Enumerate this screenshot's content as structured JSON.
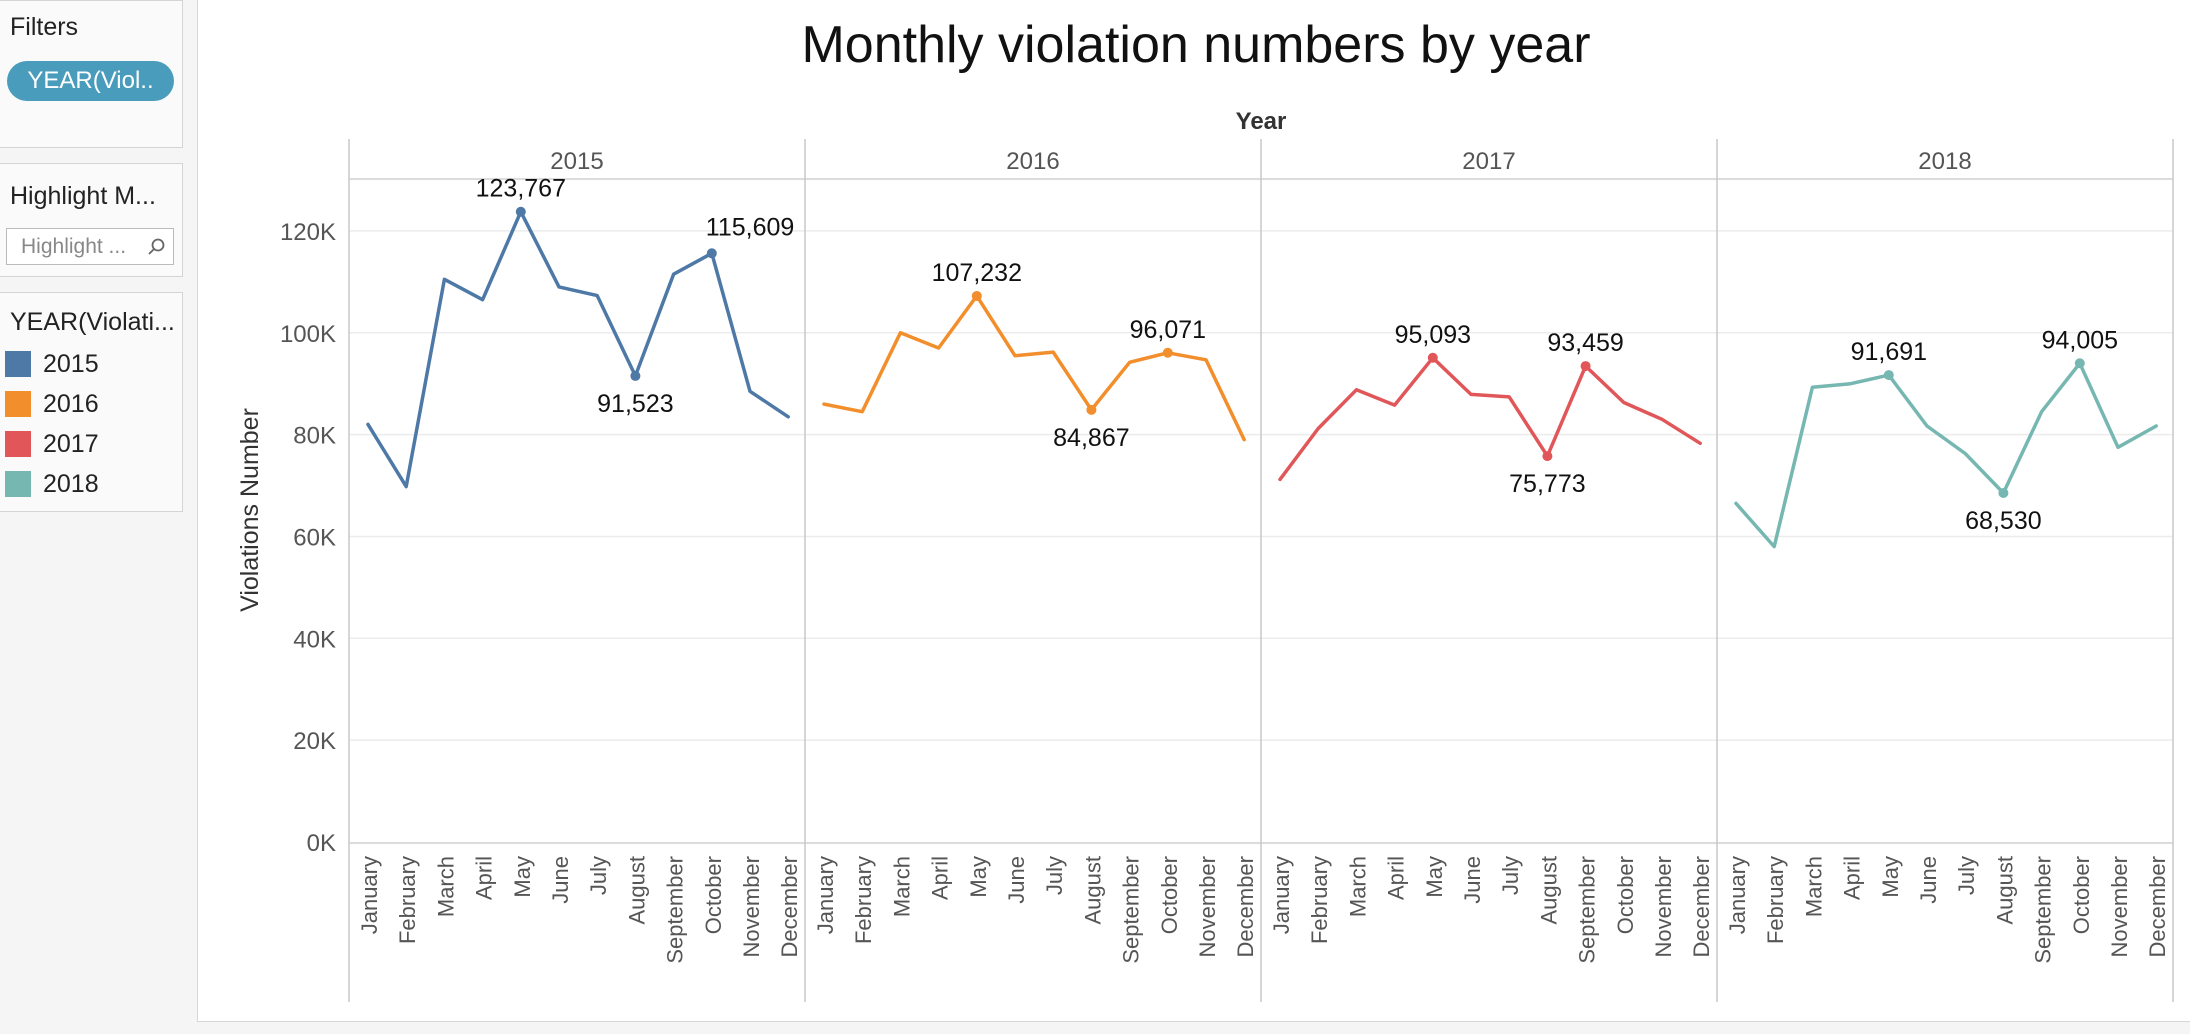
{
  "sidebar": {
    "filters": {
      "title": "Filters",
      "pill_label": "YEAR(Viol.."
    },
    "highlight": {
      "title": "Highlight M...",
      "placeholder": "Highlight ..."
    },
    "legend": {
      "title": "YEAR(Violati...",
      "items": [
        {
          "label": "2015",
          "color": "#4e79a7"
        },
        {
          "label": "2016",
          "color": "#f28e2b"
        },
        {
          "label": "2017",
          "color": "#e15759"
        },
        {
          "label": "2018",
          "color": "#76b7b2"
        }
      ]
    }
  },
  "chart_data": {
    "type": "line",
    "title": "Monthly violation numbers by year",
    "column_header": "Year",
    "ylabel": "Violations Number",
    "ylim": [
      0,
      130000
    ],
    "y_ticks": [
      0,
      20000,
      40000,
      60000,
      80000,
      100000,
      120000
    ],
    "y_tick_labels": [
      "0K",
      "20K",
      "40K",
      "60K",
      "80K",
      "100K",
      "120K"
    ],
    "categories": [
      "January",
      "February",
      "March",
      "April",
      "May",
      "June",
      "July",
      "August",
      "September",
      "October",
      "November",
      "December"
    ],
    "grid": true,
    "series": [
      {
        "name": "2015",
        "color": "#4e79a7",
        "values": [
          82000,
          69800,
          110500,
          106500,
          123767,
          109000,
          107300,
          91523,
          111500,
          115609,
          88500,
          83500
        ],
        "labels": [
          {
            "i": 4,
            "text": "123,767",
            "pos": "above"
          },
          {
            "i": 7,
            "text": "91,523",
            "pos": "below"
          },
          {
            "i": 9,
            "text": "115,609",
            "pos": "above-right"
          }
        ]
      },
      {
        "name": "2016",
        "color": "#f28e2b",
        "values": [
          86000,
          84500,
          100000,
          97000,
          107232,
          95500,
          96200,
          84867,
          94200,
          96071,
          94700,
          79000
        ],
        "labels": [
          {
            "i": 4,
            "text": "107,232",
            "pos": "above"
          },
          {
            "i": 7,
            "text": "84,867",
            "pos": "below"
          },
          {
            "i": 9,
            "text": "96,071",
            "pos": "above"
          }
        ]
      },
      {
        "name": "2017",
        "color": "#e15759",
        "values": [
          71200,
          81200,
          88800,
          85800,
          95093,
          87900,
          87400,
          75773,
          93459,
          86300,
          83000,
          78300
        ],
        "labels": [
          {
            "i": 4,
            "text": "95,093",
            "pos": "above"
          },
          {
            "i": 7,
            "text": "75,773",
            "pos": "below"
          },
          {
            "i": 8,
            "text": "93,459",
            "pos": "above"
          }
        ]
      },
      {
        "name": "2018",
        "color": "#76b7b2",
        "values": [
          66500,
          58000,
          89300,
          90000,
          91691,
          81700,
          76300,
          68530,
          84500,
          94005,
          77500,
          81700
        ],
        "labels": [
          {
            "i": 4,
            "text": "91,691",
            "pos": "above"
          },
          {
            "i": 7,
            "text": "68,530",
            "pos": "below"
          },
          {
            "i": 9,
            "text": "94,005",
            "pos": "above"
          }
        ]
      }
    ]
  }
}
